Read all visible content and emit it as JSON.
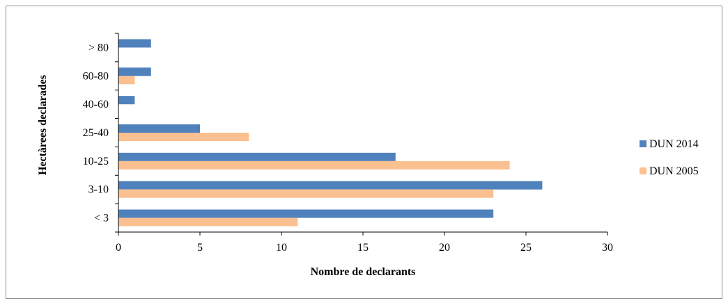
{
  "chart_data": {
    "type": "bar",
    "orientation": "horizontal",
    "title": "",
    "xlabel": "Nombre de declarants",
    "ylabel": "Hectàrees declarades",
    "xlim": [
      0,
      30
    ],
    "xticks": [
      "0",
      "5",
      "10",
      "15",
      "20",
      "25",
      "30"
    ],
    "categories": [
      "< 3",
      "3-10",
      "10-25",
      "25-40",
      "40-60",
      "60-80",
      "> 80"
    ],
    "series": [
      {
        "name": "DUN 2014",
        "color": "#4f81bd",
        "values": [
          23,
          26,
          17,
          5,
          1,
          2,
          2
        ]
      },
      {
        "name": "DUN 2005",
        "color": "#fac090",
        "values": [
          11,
          23,
          24,
          8,
          0,
          1,
          0
        ]
      }
    ],
    "grid": false,
    "legend_position": "right"
  }
}
